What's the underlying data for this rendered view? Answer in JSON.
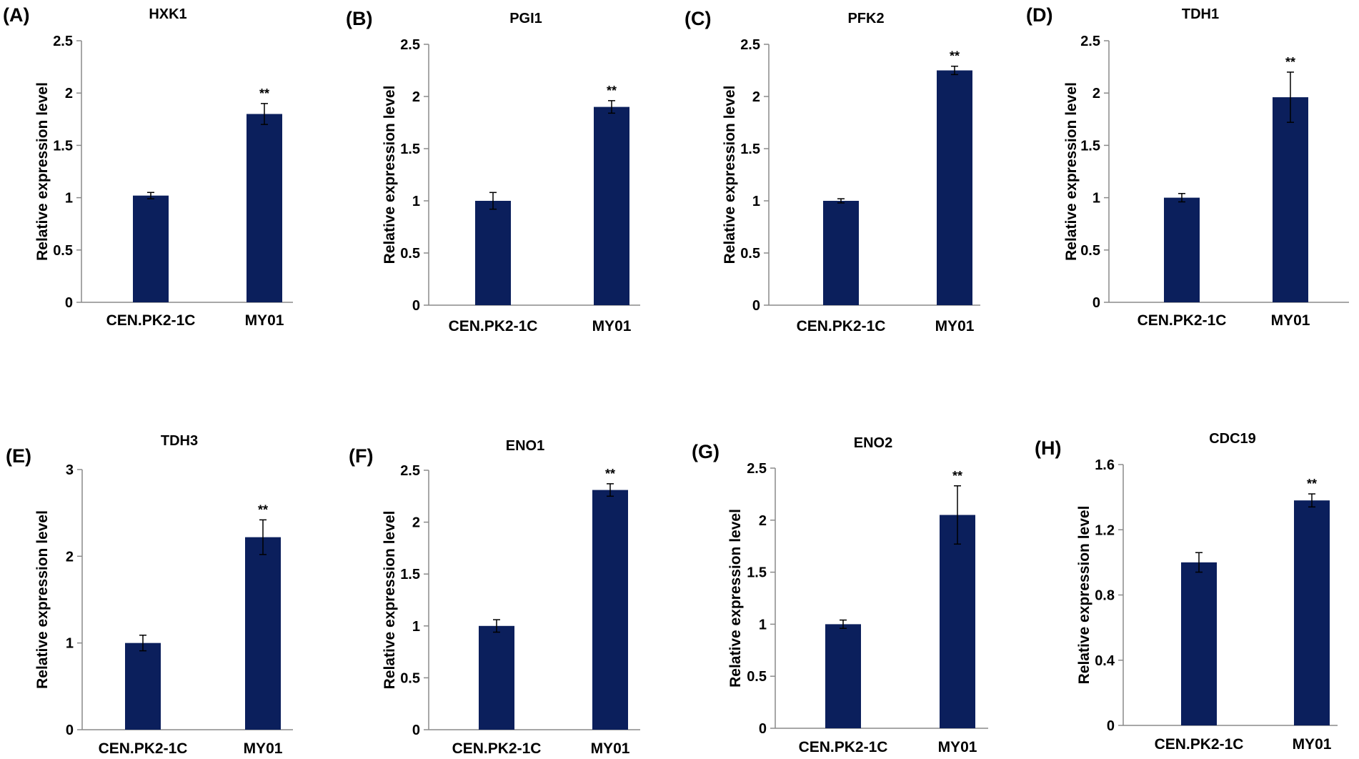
{
  "chart_data": [
    {
      "type": "bar",
      "panel": "(A)",
      "title": "HXK1",
      "ylabel": "Relative expression level",
      "categories": [
        "CEN.PK2-1C",
        "MY01"
      ],
      "values": [
        1.02,
        1.8
      ],
      "errors": [
        0.03,
        0.1
      ],
      "significance": [
        "",
        "**"
      ],
      "ylim": [
        0,
        2.5
      ],
      "yticks": [
        0,
        0.5,
        1,
        1.5,
        2,
        2.5
      ],
      "ytick_labels": [
        "0",
        "0.5",
        "1",
        "1.5",
        "2",
        "2.5"
      ],
      "bar_color": "#0b1f5c"
    },
    {
      "type": "bar",
      "panel": "(B)",
      "title": "PGI1",
      "ylabel": "Relative expression level",
      "categories": [
        "CEN.PK2-1C",
        "MY01"
      ],
      "values": [
        1.0,
        1.9
      ],
      "errors": [
        0.08,
        0.06
      ],
      "significance": [
        "",
        "**"
      ],
      "ylim": [
        0,
        2.5
      ],
      "yticks": [
        0,
        0.5,
        1,
        1.5,
        2,
        2.5
      ],
      "ytick_labels": [
        "0",
        "0.5",
        "1",
        "1.5",
        "2",
        "2.5"
      ],
      "bar_color": "#0b1f5c"
    },
    {
      "type": "bar",
      "panel": "(C)",
      "title": "PFK2",
      "ylabel": "Relative expression level",
      "categories": [
        "CEN.PK2-1C",
        "MY01"
      ],
      "values": [
        1.0,
        2.25
      ],
      "errors": [
        0.02,
        0.04
      ],
      "significance": [
        "",
        "**"
      ],
      "ylim": [
        0,
        2.5
      ],
      "yticks": [
        0,
        0.5,
        1,
        1.5,
        2,
        2.5
      ],
      "ytick_labels": [
        "0",
        "0.5",
        "1",
        "1.5",
        "2",
        "2.5"
      ],
      "bar_color": "#0b1f5c"
    },
    {
      "type": "bar",
      "panel": "(D)",
      "title": "TDH1",
      "ylabel": "Relative expression level",
      "categories": [
        "CEN.PK2-1C",
        "MY01"
      ],
      "values": [
        1.0,
        1.96
      ],
      "errors": [
        0.04,
        0.24
      ],
      "significance": [
        "",
        "**"
      ],
      "ylim": [
        0,
        2.5
      ],
      "yticks": [
        0,
        0.5,
        1,
        1.5,
        2,
        2.5
      ],
      "ytick_labels": [
        "0",
        "0.5",
        "1",
        "1.5",
        "2",
        "2.5"
      ],
      "bar_color": "#0b1f5c"
    },
    {
      "type": "bar",
      "panel": "(E)",
      "title": "TDH3",
      "ylabel": "Relative expression level",
      "categories": [
        "CEN.PK2-1C",
        "MY01"
      ],
      "values": [
        1.0,
        2.22
      ],
      "errors": [
        0.09,
        0.2
      ],
      "significance": [
        "",
        "**"
      ],
      "ylim": [
        0,
        3
      ],
      "yticks": [
        0,
        1,
        2,
        3
      ],
      "ytick_labels": [
        "0",
        "1",
        "2",
        "3"
      ],
      "bar_color": "#0b1f5c"
    },
    {
      "type": "bar",
      "panel": "(F)",
      "title": "ENO1",
      "ylabel": "Relative expression level",
      "categories": [
        "CEN.PK2-1C",
        "MY01"
      ],
      "values": [
        1.0,
        2.31
      ],
      "errors": [
        0.06,
        0.06
      ],
      "significance": [
        "",
        "**"
      ],
      "ylim": [
        0,
        2.5
      ],
      "yticks": [
        0,
        0.5,
        1,
        1.5,
        2,
        2.5
      ],
      "ytick_labels": [
        "0",
        "0.5",
        "1",
        "1.5",
        "2",
        "2.5"
      ],
      "bar_color": "#0b1f5c"
    },
    {
      "type": "bar",
      "panel": "(G)",
      "title": "ENO2",
      "ylabel": "Relative expression level",
      "categories": [
        "CEN.PK2-1C",
        "MY01"
      ],
      "values": [
        1.0,
        2.05
      ],
      "errors": [
        0.04,
        0.28
      ],
      "significance": [
        "",
        "**"
      ],
      "ylim": [
        0,
        2.5
      ],
      "yticks": [
        0,
        0.5,
        1,
        1.5,
        2,
        2.5
      ],
      "ytick_labels": [
        "0",
        "0.5",
        "1",
        "1.5",
        "2",
        "2.5"
      ],
      "bar_color": "#0b1f5c"
    },
    {
      "type": "bar",
      "panel": "(H)",
      "title": "CDC19",
      "ylabel": "Relative expression level",
      "categories": [
        "CEN.PK2-1C",
        "MY01"
      ],
      "values": [
        1.0,
        1.38
      ],
      "errors": [
        0.06,
        0.04
      ],
      "significance": [
        "",
        "**"
      ],
      "ylim": [
        0,
        1.6
      ],
      "yticks": [
        0,
        0.4,
        0.8,
        1.2,
        1.6
      ],
      "ytick_labels": [
        "0",
        "0.4",
        "0.8",
        "1.2",
        "1.6"
      ],
      "bar_color": "#0b1f5c"
    }
  ]
}
